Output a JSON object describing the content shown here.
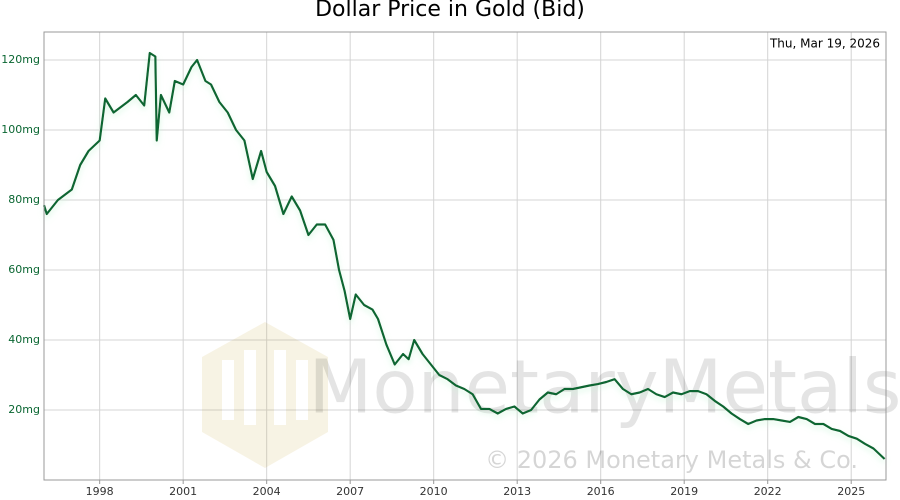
{
  "chart_data": {
    "type": "line",
    "title": "Dollar Price in Gold (Bid)",
    "date_label": "Thu, Mar 19, 2026",
    "watermark": "MonetaryMetals",
    "copyright": "© 2026 Monetary Metals & Co.",
    "color": "#0a6632",
    "grid": true,
    "xlim": [
      1996,
      2026.25
    ],
    "xticks": [
      1998,
      2001,
      2004,
      2007,
      2010,
      2013,
      2016,
      2019,
      2022,
      2025
    ],
    "ylim": [
      0,
      128
    ],
    "yticks": [
      {
        "value": 20,
        "label": "20mg"
      },
      {
        "value": 40,
        "label": "40mg"
      },
      {
        "value": 60,
        "label": "60mg"
      },
      {
        "value": 80,
        "label": "80mg"
      },
      {
        "value": 100,
        "label": "100mg"
      },
      {
        "value": 120,
        "label": "120mg"
      }
    ],
    "x": [
      1996.0,
      1996.1,
      1996.5,
      1997.0,
      1997.3,
      1997.6,
      1998.0,
      1998.2,
      1998.5,
      1999.0,
      1999.3,
      1999.6,
      1999.8,
      2000.0,
      2000.05,
      2000.2,
      2000.5,
      2000.7,
      2001.0,
      2001.3,
      2001.5,
      2001.8,
      2002.0,
      2002.3,
      2002.6,
      2002.9,
      2003.2,
      2003.5,
      2003.8,
      2004.0,
      2004.3,
      2004.6,
      2004.9,
      2005.2,
      2005.5,
      2005.8,
      2006.1,
      2006.4,
      2006.6,
      2006.8,
      2007.0,
      2007.2,
      2007.5,
      2007.8,
      2008.0,
      2008.3,
      2008.6,
      2008.9,
      2009.1,
      2009.3,
      2009.6,
      2009.9,
      2010.2,
      2010.5,
      2010.8,
      2011.1,
      2011.4,
      2011.7,
      2012.0,
      2012.3,
      2012.6,
      2012.9,
      2013.2,
      2013.5,
      2013.8,
      2014.1,
      2014.4,
      2014.7,
      2015.0,
      2015.3,
      2015.6,
      2015.9,
      2016.2,
      2016.5,
      2016.8,
      2017.1,
      2017.4,
      2017.7,
      2018.0,
      2018.3,
      2018.6,
      2018.9,
      2019.2,
      2019.5,
      2019.8,
      2020.1,
      2020.4,
      2020.7,
      2021.0,
      2021.3,
      2021.6,
      2021.9,
      2022.2,
      2022.5,
      2022.8,
      2023.1,
      2023.4,
      2023.7,
      2024.0,
      2024.3,
      2024.6,
      2024.9,
      2025.2,
      2025.5,
      2025.8,
      2026.0,
      2026.2
    ],
    "values": [
      78.5,
      76,
      80,
      83,
      90,
      94,
      97,
      109,
      105,
      108,
      110,
      107,
      122,
      121,
      97,
      110,
      105,
      114,
      113,
      118,
      120,
      114,
      113,
      108,
      105,
      100,
      97,
      86,
      94,
      88,
      84,
      76,
      81,
      77,
      70,
      73,
      73,
      68.6,
      60,
      54,
      46,
      53,
      50,
      48.7,
      46,
      38.7,
      33,
      36,
      34.5,
      40,
      36,
      33,
      30,
      28.8,
      27,
      26,
      24.5,
      20.3,
      20.3,
      19,
      20.3,
      21,
      19,
      20,
      23,
      25,
      24.5,
      26,
      26,
      26.5,
      27,
      27.4,
      28,
      28.8,
      26,
      24.5,
      25,
      26,
      24.5,
      23.7,
      25,
      24.5,
      25.4,
      25.4,
      24.5,
      22.6,
      21,
      19,
      17.4,
      16,
      17,
      17.4,
      17.4,
      17,
      16.6,
      18,
      17.4,
      16,
      16,
      14.6,
      14,
      12.6,
      11.8,
      10.3,
      9,
      7.5,
      6
    ]
  }
}
